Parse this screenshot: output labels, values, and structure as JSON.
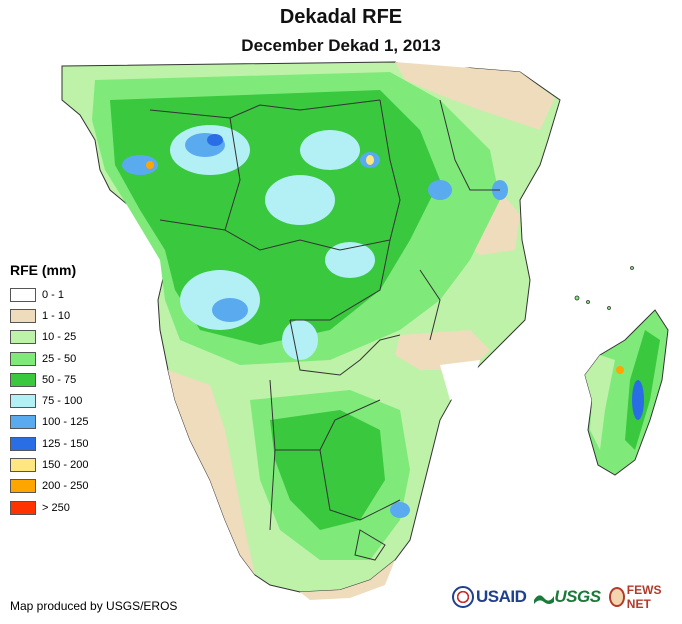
{
  "header": {
    "title": "Dekadal RFE",
    "subtitle": "December Dekad 1, 2013"
  },
  "legend": {
    "title": "RFE (mm)",
    "classes": [
      {
        "label": "0 - 1",
        "color": "#ffffff"
      },
      {
        "label": "1 - 10",
        "color": "#efdcbd"
      },
      {
        "label": "10 - 25",
        "color": "#bdf2a8"
      },
      {
        "label": "25 - 50",
        "color": "#7fea7a"
      },
      {
        "label": "50 - 75",
        "color": "#39c83e"
      },
      {
        "label": "75 - 100",
        "color": "#b3f0f5"
      },
      {
        "label": "100 - 125",
        "color": "#5aaaf0"
      },
      {
        "label": "125 - 150",
        "color": "#2a6ee6"
      },
      {
        "label": "150 - 200",
        "color": "#ffe680"
      },
      {
        "label": "200 - 250",
        "color": "#ffa500"
      },
      {
        "label": "> 250",
        "color": "#ff3300"
      }
    ]
  },
  "footer": {
    "credit": "Map produced by USGS/EROS",
    "logos": {
      "usaid": "USAID",
      "usgs": "USGS",
      "fews": "FEWS NET"
    }
  },
  "map": {
    "boundary_color": "#333333",
    "region": "Southern and Central Africa with Madagascar"
  }
}
